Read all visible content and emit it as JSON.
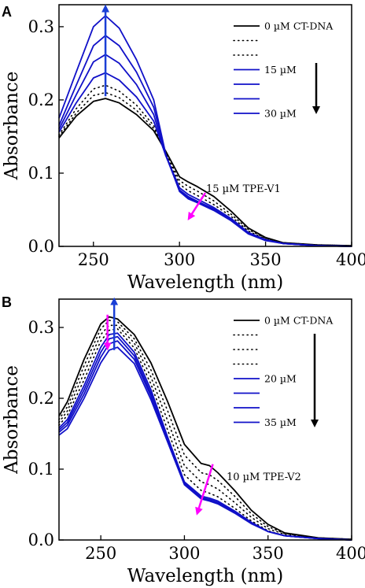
{
  "chart_data": [
    {
      "panel": "A",
      "type": "line",
      "xlabel": "Wavelength (nm)",
      "ylabel": "Absorbance",
      "xlim": [
        230,
        400
      ],
      "ylim": [
        0.0,
        0.33
      ],
      "xticks": [
        "250",
        "300",
        "350",
        "400"
      ],
      "yticks": [
        "0.0",
        "0.1",
        "0.2",
        "0.3"
      ],
      "legend_position": "top-right",
      "legend": [
        {
          "label": "0 µM CT-DNA",
          "style": "solid",
          "color": "#000000"
        },
        {
          "label": "",
          "style": "dotted",
          "color": "#000000"
        },
        {
          "label": "",
          "style": "dotted",
          "color": "#000000"
        },
        {
          "label": "15 µM",
          "style": "solid",
          "color": "#1010c8"
        },
        {
          "label": "",
          "style": "solid",
          "color": "#1010c8"
        },
        {
          "label": "",
          "style": "solid",
          "color": "#1010c8"
        },
        {
          "label": "30 µM",
          "style": "solid",
          "color": "#1010c8"
        }
      ],
      "annotation": "15 µM TPE-V1",
      "arrow_colors": {
        "up": "#1a3fd6",
        "down": "#ff00ff",
        "legend": "#000000"
      },
      "series": [
        {
          "style": "solid",
          "color": "#000000",
          "x": [
            230,
            240,
            250,
            257,
            265,
            275,
            285,
            292,
            300,
            305,
            310,
            320,
            330,
            340,
            350,
            360,
            380,
            400
          ],
          "y": [
            0.148,
            0.178,
            0.198,
            0.202,
            0.196,
            0.18,
            0.158,
            0.13,
            0.095,
            0.088,
            0.082,
            0.068,
            0.048,
            0.025,
            0.012,
            0.005,
            0.002,
            0.001
          ]
        },
        {
          "style": "dotted",
          "color": "#000000",
          "x": [
            230,
            240,
            250,
            257,
            265,
            275,
            285,
            292,
            300,
            305,
            310,
            320,
            330,
            340,
            350,
            360,
            380,
            400
          ],
          "y": [
            0.15,
            0.182,
            0.206,
            0.21,
            0.203,
            0.186,
            0.161,
            0.128,
            0.09,
            0.082,
            0.076,
            0.062,
            0.044,
            0.023,
            0.011,
            0.005,
            0.002,
            0.001
          ]
        },
        {
          "style": "dotted",
          "color": "#000000",
          "x": [
            230,
            240,
            250,
            257,
            265,
            275,
            285,
            292,
            300,
            305,
            310,
            320,
            330,
            340,
            350,
            360,
            380,
            400
          ],
          "y": [
            0.152,
            0.188,
            0.215,
            0.22,
            0.212,
            0.193,
            0.165,
            0.126,
            0.085,
            0.076,
            0.07,
            0.057,
            0.041,
            0.021,
            0.01,
            0.004,
            0.002,
            0.001
          ]
        },
        {
          "style": "solid",
          "color": "#1010c8",
          "x": [
            230,
            240,
            250,
            257,
            265,
            275,
            285,
            292,
            300,
            305,
            310,
            320,
            330,
            340,
            350,
            360,
            380,
            400
          ],
          "y": [
            0.156,
            0.196,
            0.23,
            0.237,
            0.227,
            0.204,
            0.171,
            0.124,
            0.08,
            0.071,
            0.065,
            0.053,
            0.038,
            0.019,
            0.009,
            0.004,
            0.001,
            0.0
          ]
        },
        {
          "style": "solid",
          "color": "#1010c8",
          "x": [
            230,
            240,
            250,
            257,
            265,
            275,
            285,
            292,
            300,
            305,
            310,
            320,
            330,
            340,
            350,
            360,
            380,
            400
          ],
          "y": [
            0.16,
            0.207,
            0.252,
            0.262,
            0.25,
            0.221,
            0.18,
            0.124,
            0.077,
            0.068,
            0.062,
            0.051,
            0.037,
            0.018,
            0.009,
            0.004,
            0.001,
            0.0
          ]
        },
        {
          "style": "solid",
          "color": "#1010c8",
          "x": [
            230,
            240,
            250,
            257,
            265,
            275,
            285,
            292,
            300,
            305,
            310,
            320,
            330,
            340,
            350,
            360,
            380,
            400
          ],
          "y": [
            0.165,
            0.22,
            0.274,
            0.288,
            0.274,
            0.238,
            0.19,
            0.125,
            0.076,
            0.066,
            0.061,
            0.05,
            0.036,
            0.018,
            0.009,
            0.004,
            0.001,
            0.0
          ]
        },
        {
          "style": "solid",
          "color": "#1010c8",
          "x": [
            230,
            240,
            250,
            257,
            265,
            275,
            285,
            292,
            300,
            305,
            310,
            320,
            330,
            340,
            350,
            360,
            380,
            400
          ],
          "y": [
            0.175,
            0.238,
            0.3,
            0.315,
            0.298,
            0.255,
            0.2,
            0.126,
            0.075,
            0.065,
            0.06,
            0.049,
            0.035,
            0.017,
            0.008,
            0.004,
            0.001,
            0.0
          ]
        }
      ]
    },
    {
      "panel": "B",
      "type": "line",
      "xlabel": "Wavelength (nm)",
      "ylabel": "Absorbance",
      "xlim": [
        225,
        400
      ],
      "ylim": [
        0.0,
        0.34
      ],
      "xticks": [
        "250",
        "300",
        "350",
        "400"
      ],
      "yticks": [
        "0.0",
        "0.1",
        "0.2",
        "0.3"
      ],
      "legend_position": "top-right",
      "legend": [
        {
          "label": "0 µM CT-DNA",
          "style": "solid",
          "color": "#000000"
        },
        {
          "label": "",
          "style": "dotted",
          "color": "#000000"
        },
        {
          "label": "",
          "style": "dotted",
          "color": "#000000"
        },
        {
          "label": "",
          "style": "dotted",
          "color": "#000000"
        },
        {
          "label": "20 µM",
          "style": "solid",
          "color": "#1010c8"
        },
        {
          "label": "",
          "style": "solid",
          "color": "#1010c8"
        },
        {
          "label": "",
          "style": "solid",
          "color": "#1010c8"
        },
        {
          "label": "35 µM",
          "style": "solid",
          "color": "#1010c8"
        }
      ],
      "annotation": "10 µM TPE-V2",
      "arrow_colors": {
        "up": "#1a3fd6",
        "down": "#ff00ff",
        "legend": "#000000"
      },
      "series": [
        {
          "style": "solid",
          "color": "#000000",
          "x": [
            225,
            230,
            240,
            250,
            255,
            260,
            270,
            280,
            290,
            300,
            310,
            315,
            320,
            330,
            340,
            350,
            360,
            380,
            400
          ],
          "y": [
            0.175,
            0.195,
            0.255,
            0.305,
            0.315,
            0.312,
            0.29,
            0.25,
            0.195,
            0.135,
            0.108,
            0.105,
            0.095,
            0.07,
            0.042,
            0.022,
            0.01,
            0.003,
            0.001
          ]
        },
        {
          "style": "dotted",
          "color": "#000000",
          "x": [
            225,
            230,
            240,
            250,
            255,
            260,
            270,
            280,
            290,
            300,
            310,
            315,
            320,
            330,
            340,
            350,
            360,
            380,
            400
          ],
          "y": [
            0.17,
            0.188,
            0.246,
            0.298,
            0.31,
            0.308,
            0.284,
            0.24,
            0.182,
            0.12,
            0.095,
            0.092,
            0.084,
            0.062,
            0.037,
            0.019,
            0.009,
            0.003,
            0.001
          ]
        },
        {
          "style": "dotted",
          "color": "#000000",
          "x": [
            225,
            230,
            240,
            250,
            255,
            260,
            270,
            280,
            290,
            300,
            310,
            315,
            320,
            330,
            340,
            350,
            360,
            380,
            400
          ],
          "y": [
            0.166,
            0.182,
            0.236,
            0.29,
            0.303,
            0.303,
            0.278,
            0.23,
            0.168,
            0.105,
            0.082,
            0.078,
            0.072,
            0.053,
            0.032,
            0.016,
            0.008,
            0.002,
            0.001
          ]
        },
        {
          "style": "dotted",
          "color": "#000000",
          "x": [
            225,
            230,
            240,
            250,
            255,
            260,
            270,
            280,
            290,
            300,
            310,
            315,
            320,
            330,
            340,
            350,
            360,
            380,
            400
          ],
          "y": [
            0.162,
            0.176,
            0.226,
            0.281,
            0.296,
            0.298,
            0.271,
            0.22,
            0.155,
            0.092,
            0.07,
            0.066,
            0.061,
            0.045,
            0.027,
            0.013,
            0.006,
            0.002,
            0.0
          ]
        },
        {
          "style": "solid",
          "color": "#1010c8",
          "x": [
            225,
            230,
            240,
            250,
            255,
            260,
            270,
            280,
            290,
            300,
            310,
            315,
            320,
            330,
            340,
            350,
            360,
            380,
            400
          ],
          "y": [
            0.158,
            0.17,
            0.218,
            0.272,
            0.29,
            0.292,
            0.265,
            0.212,
            0.145,
            0.082,
            0.062,
            0.059,
            0.055,
            0.041,
            0.025,
            0.012,
            0.006,
            0.002,
            0.0
          ]
        },
        {
          "style": "solid",
          "color": "#1010c8",
          "x": [
            225,
            230,
            240,
            250,
            255,
            260,
            270,
            280,
            290,
            300,
            310,
            315,
            320,
            330,
            340,
            350,
            360,
            380,
            400
          ],
          "y": [
            0.155,
            0.166,
            0.212,
            0.265,
            0.284,
            0.287,
            0.26,
            0.207,
            0.142,
            0.08,
            0.06,
            0.057,
            0.053,
            0.04,
            0.024,
            0.012,
            0.006,
            0.002,
            0.0
          ]
        },
        {
          "style": "solid",
          "color": "#1010c8",
          "x": [
            225,
            230,
            240,
            250,
            255,
            260,
            270,
            280,
            290,
            300,
            310,
            315,
            320,
            330,
            340,
            350,
            360,
            380,
            400
          ],
          "y": [
            0.152,
            0.162,
            0.206,
            0.258,
            0.277,
            0.281,
            0.255,
            0.203,
            0.14,
            0.079,
            0.059,
            0.056,
            0.052,
            0.039,
            0.024,
            0.012,
            0.006,
            0.002,
            0.0
          ]
        },
        {
          "style": "solid",
          "color": "#1010c8",
          "x": [
            225,
            230,
            240,
            250,
            255,
            260,
            270,
            280,
            290,
            300,
            310,
            315,
            320,
            330,
            340,
            350,
            360,
            380,
            400
          ],
          "y": [
            0.148,
            0.157,
            0.2,
            0.25,
            0.268,
            0.272,
            0.249,
            0.198,
            0.138,
            0.078,
            0.058,
            0.055,
            0.051,
            0.038,
            0.023,
            0.012,
            0.006,
            0.002,
            0.0
          ]
        }
      ]
    }
  ]
}
